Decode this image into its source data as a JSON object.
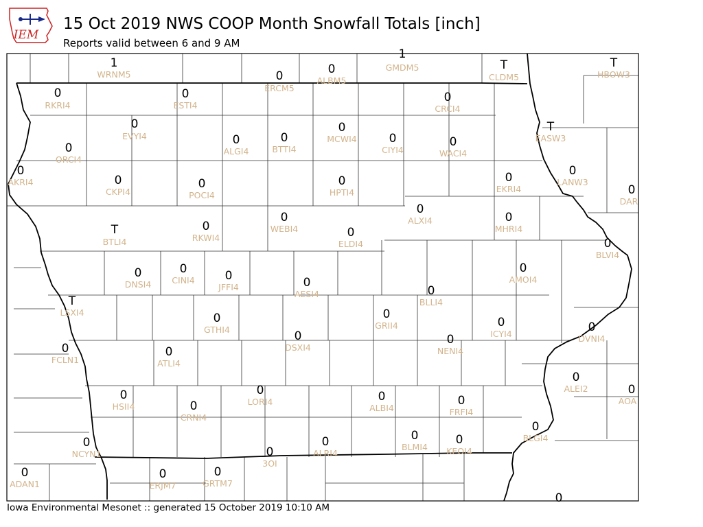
{
  "header": {
    "logo_text": "IEM",
    "title": "15 Oct 2019 NWS COOP Month Snowfall Totals [inch]",
    "subtitle": "Reports valid between 6 and 9 AM"
  },
  "footer": {
    "text": "Iowa Environmental Mesonet :: generated 15 October 2019 10:10 AM"
  },
  "colors": {
    "station_id": "#d2b48c",
    "value": "#000000",
    "state_border": "#000000",
    "county_border": "#333333"
  },
  "stations": [
    {
      "id": "WRNM5",
      "value": "1"
    },
    {
      "id": "GMDM5",
      "value": "1"
    },
    {
      "id": "CLDM5",
      "value": "T"
    },
    {
      "id": "HBOW3",
      "value": "T"
    },
    {
      "id": "ERCM5",
      "value": "0"
    },
    {
      "id": "ALBM5",
      "value": "0"
    },
    {
      "id": "RKRI4",
      "value": "0"
    },
    {
      "id": "ESTI4",
      "value": "0"
    },
    {
      "id": "CRCI4",
      "value": "0"
    },
    {
      "id": "EVYI4",
      "value": "0"
    },
    {
      "id": "EASW3",
      "value": "T"
    },
    {
      "id": "ALGI4",
      "value": "0"
    },
    {
      "id": "BTTI4",
      "value": "0"
    },
    {
      "id": "MCWI4",
      "value": "0"
    },
    {
      "id": "CIYI4",
      "value": "0"
    },
    {
      "id": "WACI4",
      "value": "0"
    },
    {
      "id": "ORCI4",
      "value": "0"
    },
    {
      "id": "AKRI4",
      "value": "0"
    },
    {
      "id": "LANW3",
      "value": "0"
    },
    {
      "id": "CKPI4",
      "value": "0"
    },
    {
      "id": "POCI4",
      "value": "0"
    },
    {
      "id": "HPTI4",
      "value": "0"
    },
    {
      "id": "EKRI4",
      "value": "0"
    },
    {
      "id": "DAR",
      "value": "0"
    },
    {
      "id": "ALXI4",
      "value": "0"
    },
    {
      "id": "BTLI4",
      "value": "T"
    },
    {
      "id": "RKWI4",
      "value": "0"
    },
    {
      "id": "WEBI4",
      "value": "0"
    },
    {
      "id": "ELDI4",
      "value": "0"
    },
    {
      "id": "MHRI4",
      "value": "0"
    },
    {
      "id": "BLVI4",
      "value": "0"
    },
    {
      "id": "DNSI4",
      "value": "0"
    },
    {
      "id": "CINI4",
      "value": "0"
    },
    {
      "id": "JFFI4",
      "value": "0"
    },
    {
      "id": "AMOI4",
      "value": "0"
    },
    {
      "id": "AESI4",
      "value": "0"
    },
    {
      "id": "BLLI4",
      "value": "0"
    },
    {
      "id": "LSXI4",
      "value": "T"
    },
    {
      "id": "GTHI4",
      "value": "0"
    },
    {
      "id": "GRII4",
      "value": "0"
    },
    {
      "id": "ICYI4",
      "value": "0"
    },
    {
      "id": "DVNI4",
      "value": "0"
    },
    {
      "id": "DSXI4",
      "value": "0"
    },
    {
      "id": "NENI4",
      "value": "0"
    },
    {
      "id": "FCLN1",
      "value": "0"
    },
    {
      "id": "ATLI4",
      "value": "0"
    },
    {
      "id": "ALEI2",
      "value": "0"
    },
    {
      "id": "AOA",
      "value": "0"
    },
    {
      "id": "HSII4",
      "value": "0"
    },
    {
      "id": "LORI4",
      "value": "0"
    },
    {
      "id": "ALBI4",
      "value": "0"
    },
    {
      "id": "FRFI4",
      "value": "0"
    },
    {
      "id": "CRNI4",
      "value": "0"
    },
    {
      "id": "BLGI4",
      "value": "0"
    },
    {
      "id": "NCYN1",
      "value": "0"
    },
    {
      "id": "ALRI4",
      "value": "0"
    },
    {
      "id": "BLMI4",
      "value": "0"
    },
    {
      "id": "KEOI4",
      "value": "0"
    },
    {
      "id": "3OI",
      "value": "0"
    },
    {
      "id": "ADAN1",
      "value": "0"
    },
    {
      "id": "ERJM7",
      "value": "0"
    },
    {
      "id": "GRTM7",
      "value": "0"
    },
    {
      "id": "",
      "value": "0"
    }
  ]
}
